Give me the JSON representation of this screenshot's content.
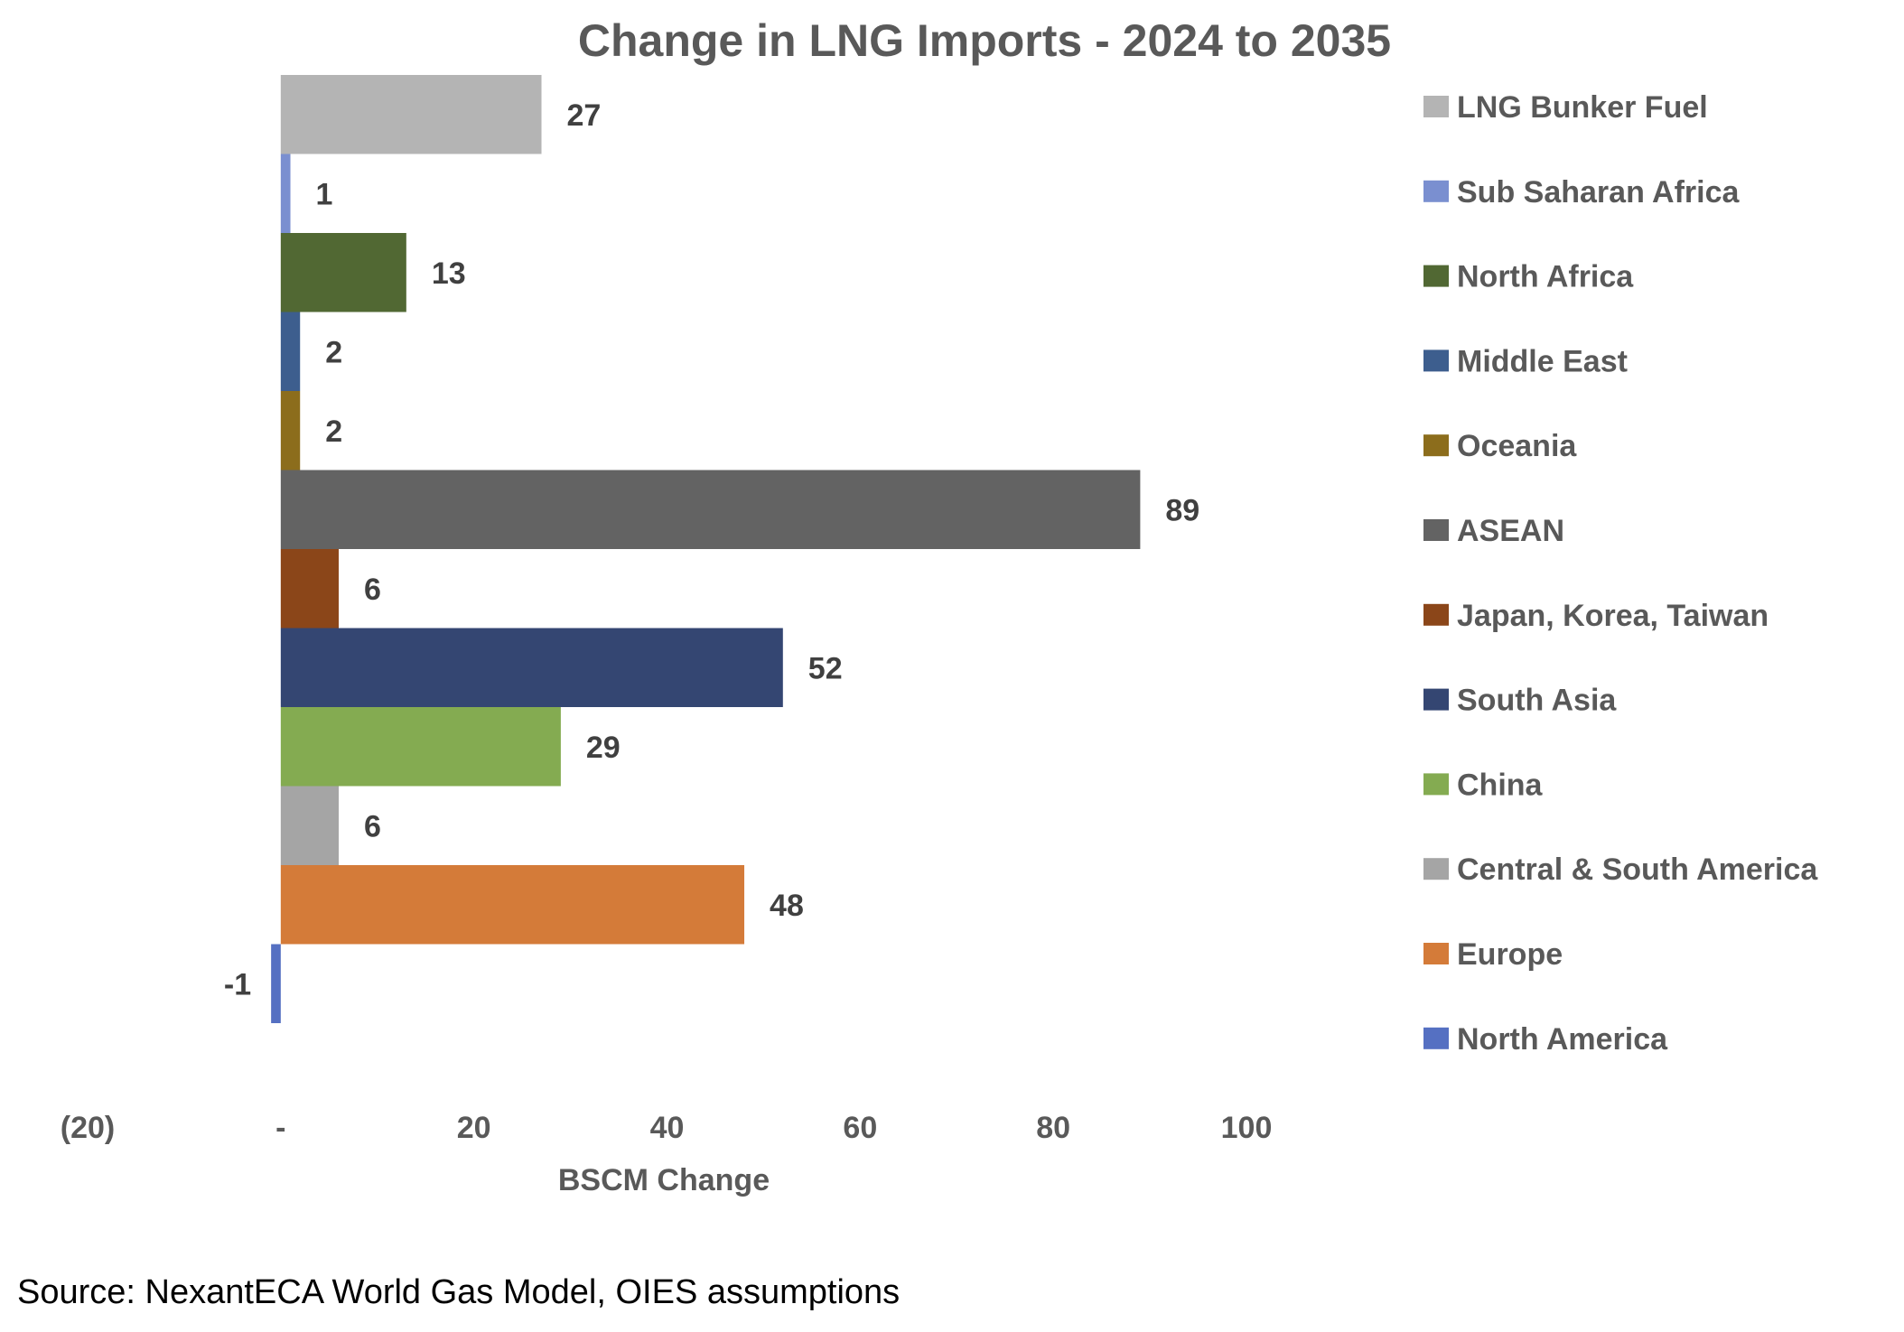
{
  "chart_data": {
    "type": "bar",
    "orientation": "horizontal",
    "title": "Change in LNG Imports - 2024 to 2035",
    "xlabel": "BSCM Change",
    "ylabel": "",
    "xlim": [
      -20,
      100
    ],
    "x_ticks": [
      -20,
      0,
      20,
      40,
      60,
      80,
      100
    ],
    "x_tick_labels": [
      "(20)",
      "-",
      "20",
      "40",
      "60",
      "80",
      "100"
    ],
    "grid": false,
    "legend_position": "right",
    "categories": [
      "LNG Bunker Fuel",
      "Sub Saharan Africa",
      "North Africa",
      "Middle East",
      "Oceania",
      "ASEAN",
      "Japan, Korea, Taiwan",
      "South Asia",
      "China",
      "Central & South America",
      "Europe",
      "North America"
    ],
    "values": [
      27,
      1,
      13,
      2,
      2,
      89,
      6,
      52,
      29,
      6,
      48,
      -1
    ],
    "data_labels": [
      "27",
      "1",
      "13",
      "2",
      "2",
      "89",
      "6",
      "52",
      "29",
      "6",
      "48",
      "-1"
    ],
    "colors": [
      "#b4b4b4",
      "#7a8fd0",
      "#516833",
      "#3d5e8e",
      "#8c6d1c",
      "#636363",
      "#8b4619",
      "#344672",
      "#84ab51",
      "#a5a5a5",
      "#d47b39",
      "#5570c2"
    ]
  },
  "source": "Source: NexantECA World Gas Model, OIES assumptions"
}
